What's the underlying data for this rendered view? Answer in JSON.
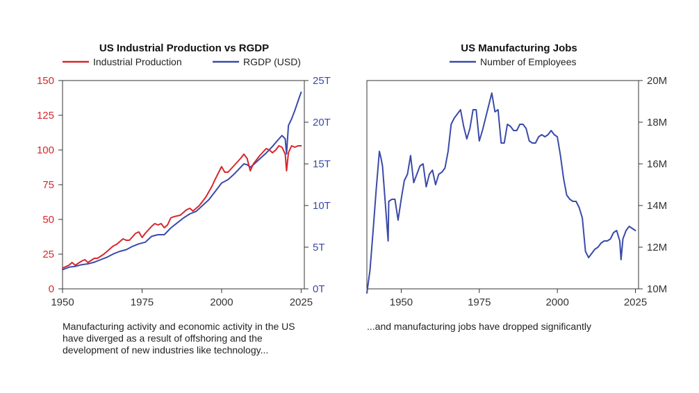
{
  "chart_data": [
    {
      "type": "line",
      "title": "US Industrial Production vs RGDP",
      "caption": "Manufacturing activity and economic activity in the US have diverged as a result of offshoring and the development of new industries like technology...",
      "xlim": [
        1950,
        2026
      ],
      "x_ticks": [
        1950,
        1975,
        2000,
        2025
      ],
      "y_left": {
        "lim": [
          0,
          150
        ],
        "ticks": [
          0,
          25,
          50,
          75,
          100,
          125,
          150
        ],
        "tick_labels": [
          "0",
          "25",
          "50",
          "75",
          "100",
          "125",
          "150"
        ]
      },
      "y_right": {
        "lim": [
          0,
          25
        ],
        "ticks": [
          0,
          5,
          10,
          15,
          20,
          25
        ],
        "tick_labels": [
          "0T",
          "5T",
          "10T",
          "15T",
          "20T",
          "25T"
        ]
      },
      "legend_position": "top",
      "series": [
        {
          "name": "Industrial Production",
          "axis": "left",
          "color": "#d7262b",
          "x": [
            1950,
            1952,
            1953,
            1954,
            1956,
            1957,
            1958,
            1960,
            1961,
            1963,
            1965,
            1966,
            1967,
            1968,
            1969,
            1970,
            1971,
            1973,
            1974,
            1975,
            1976,
            1978,
            1979,
            1980,
            1981,
            1982,
            1983,
            1984,
            1985,
            1987,
            1989,
            1990,
            1991,
            1993,
            1995,
            1997,
            1998,
            2000,
            2001,
            2002,
            2004,
            2006,
            2007,
            2008,
            2009,
            2010,
            2012,
            2014,
            2015,
            2016,
            2017,
            2018,
            2019,
            2020,
            2020.4,
            2021,
            2022,
            2023,
            2024,
            2025
          ],
          "y": [
            15,
            17,
            19,
            17,
            20,
            21,
            19,
            22,
            22,
            25,
            29,
            31,
            32,
            34,
            36,
            35,
            35,
            40,
            41,
            37,
            40,
            45,
            47,
            46,
            47,
            44,
            46,
            51,
            52,
            53,
            57,
            58,
            56,
            60,
            66,
            74,
            79,
            88,
            84,
            84,
            89,
            94,
            97,
            94,
            85,
            90,
            96,
            101,
            100,
            98,
            100,
            103,
            102,
            97,
            85,
            98,
            103,
            102,
            103,
            103
          ]
        },
        {
          "name": "RGDP (USD)",
          "axis": "right",
          "color": "#3a4aa8",
          "x": [
            1950,
            1952,
            1954,
            1956,
            1958,
            1960,
            1962,
            1964,
            1966,
            1968,
            1970,
            1972,
            1974,
            1976,
            1978,
            1980,
            1982,
            1984,
            1986,
            1988,
            1990,
            1992,
            1994,
            1996,
            1998,
            2000,
            2002,
            2004,
            2006,
            2007,
            2008,
            2009,
            2010,
            2012,
            2014,
            2016,
            2018,
            2019,
            2020,
            2020.4,
            2021,
            2022,
            2023,
            2024,
            2025
          ],
          "y": [
            2.3,
            2.6,
            2.7,
            2.9,
            3.0,
            3.2,
            3.5,
            3.8,
            4.2,
            4.5,
            4.7,
            5.1,
            5.4,
            5.6,
            6.3,
            6.5,
            6.5,
            7.3,
            7.9,
            8.5,
            9.0,
            9.3,
            10.0,
            10.7,
            11.7,
            12.7,
            13.1,
            13.8,
            14.6,
            15.0,
            14.9,
            14.6,
            14.9,
            15.6,
            16.3,
            17.1,
            18.0,
            18.4,
            18.0,
            16.2,
            19.6,
            20.4,
            21.4,
            22.5,
            23.6
          ]
        }
      ]
    },
    {
      "type": "line",
      "title": "US Manufacturing Jobs",
      "caption": "...and manufacturing jobs have dropped significantly",
      "xlim": [
        1939,
        2026
      ],
      "x_ticks": [
        1950,
        1975,
        2000,
        2025
      ],
      "y_right": {
        "lim": [
          10,
          20
        ],
        "ticks": [
          10,
          12,
          14,
          16,
          18,
          20
        ],
        "tick_labels": [
          "10M",
          "12M",
          "14M",
          "16M",
          "18M",
          "20M"
        ]
      },
      "legend_position": "top",
      "series": [
        {
          "name": "Number of Employees",
          "axis": "right",
          "color": "#3a4aa8",
          "x": [
            1939,
            1940,
            1941,
            1942,
            1943,
            1943.5,
            1944,
            1945,
            1945.8,
            1946,
            1947,
            1948,
            1949,
            1950,
            1951,
            1952,
            1953,
            1954,
            1955,
            1956,
            1957,
            1958,
            1959,
            1960,
            1961,
            1962,
            1963,
            1964,
            1965,
            1966,
            1967,
            1968,
            1969,
            1970,
            1971,
            1972,
            1973,
            1974,
            1975,
            1976,
            1977,
            1978,
            1979,
            1980,
            1981,
            1982,
            1983,
            1984,
            1985,
            1986,
            1987,
            1988,
            1989,
            1990,
            1991,
            1992,
            1993,
            1994,
            1995,
            1996,
            1997,
            1998,
            1999,
            2000,
            2001,
            2002,
            2003,
            2004,
            2005,
            2006,
            2007,
            2008,
            2009,
            2010,
            2011,
            2012,
            2013,
            2014,
            2015,
            2016,
            2017,
            2018,
            2019,
            2020,
            2020.4,
            2021,
            2022,
            2023,
            2024,
            2025
          ],
          "y": [
            9.8,
            10.9,
            12.8,
            14.8,
            16.6,
            16.3,
            15.9,
            13.9,
            12.3,
            14.2,
            14.3,
            14.3,
            13.3,
            14.3,
            15.2,
            15.5,
            16.4,
            15.1,
            15.5,
            15.9,
            16.0,
            14.9,
            15.5,
            15.7,
            15.0,
            15.5,
            15.6,
            15.8,
            16.6,
            17.9,
            18.2,
            18.4,
            18.6,
            17.8,
            17.2,
            17.7,
            18.6,
            18.6,
            17.1,
            17.6,
            18.2,
            18.8,
            19.4,
            18.5,
            18.6,
            17.0,
            17.0,
            17.9,
            17.8,
            17.6,
            17.6,
            17.9,
            17.9,
            17.7,
            17.1,
            17.0,
            17.0,
            17.3,
            17.4,
            17.3,
            17.4,
            17.6,
            17.4,
            17.3,
            16.4,
            15.3,
            14.5,
            14.3,
            14.2,
            14.2,
            13.9,
            13.4,
            11.8,
            11.5,
            11.7,
            11.9,
            12.0,
            12.2,
            12.3,
            12.3,
            12.4,
            12.7,
            12.8,
            12.3,
            11.4,
            12.4,
            12.8,
            13.0,
            12.9,
            12.8
          ]
        }
      ]
    }
  ]
}
